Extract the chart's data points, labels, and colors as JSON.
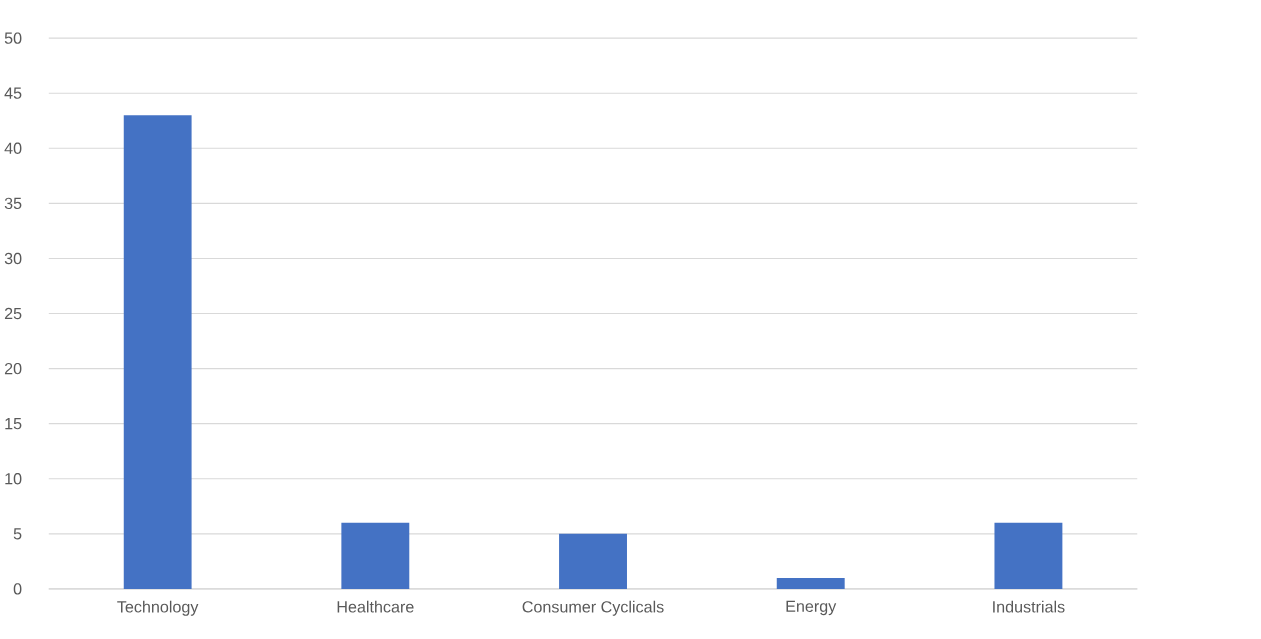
{
  "chart_data": {
    "type": "bar",
    "categories": [
      "Technology",
      "Healthcare",
      "Consumer Cyclicals",
      "Energy",
      "Industrials"
    ],
    "values": [
      43,
      6,
      5,
      1,
      6
    ],
    "color": "#4472c4",
    "ylim": [
      0,
      50
    ],
    "yticks": [
      0,
      5,
      10,
      15,
      20,
      25,
      30,
      35,
      40,
      45,
      50
    ],
    "grid": "y"
  }
}
